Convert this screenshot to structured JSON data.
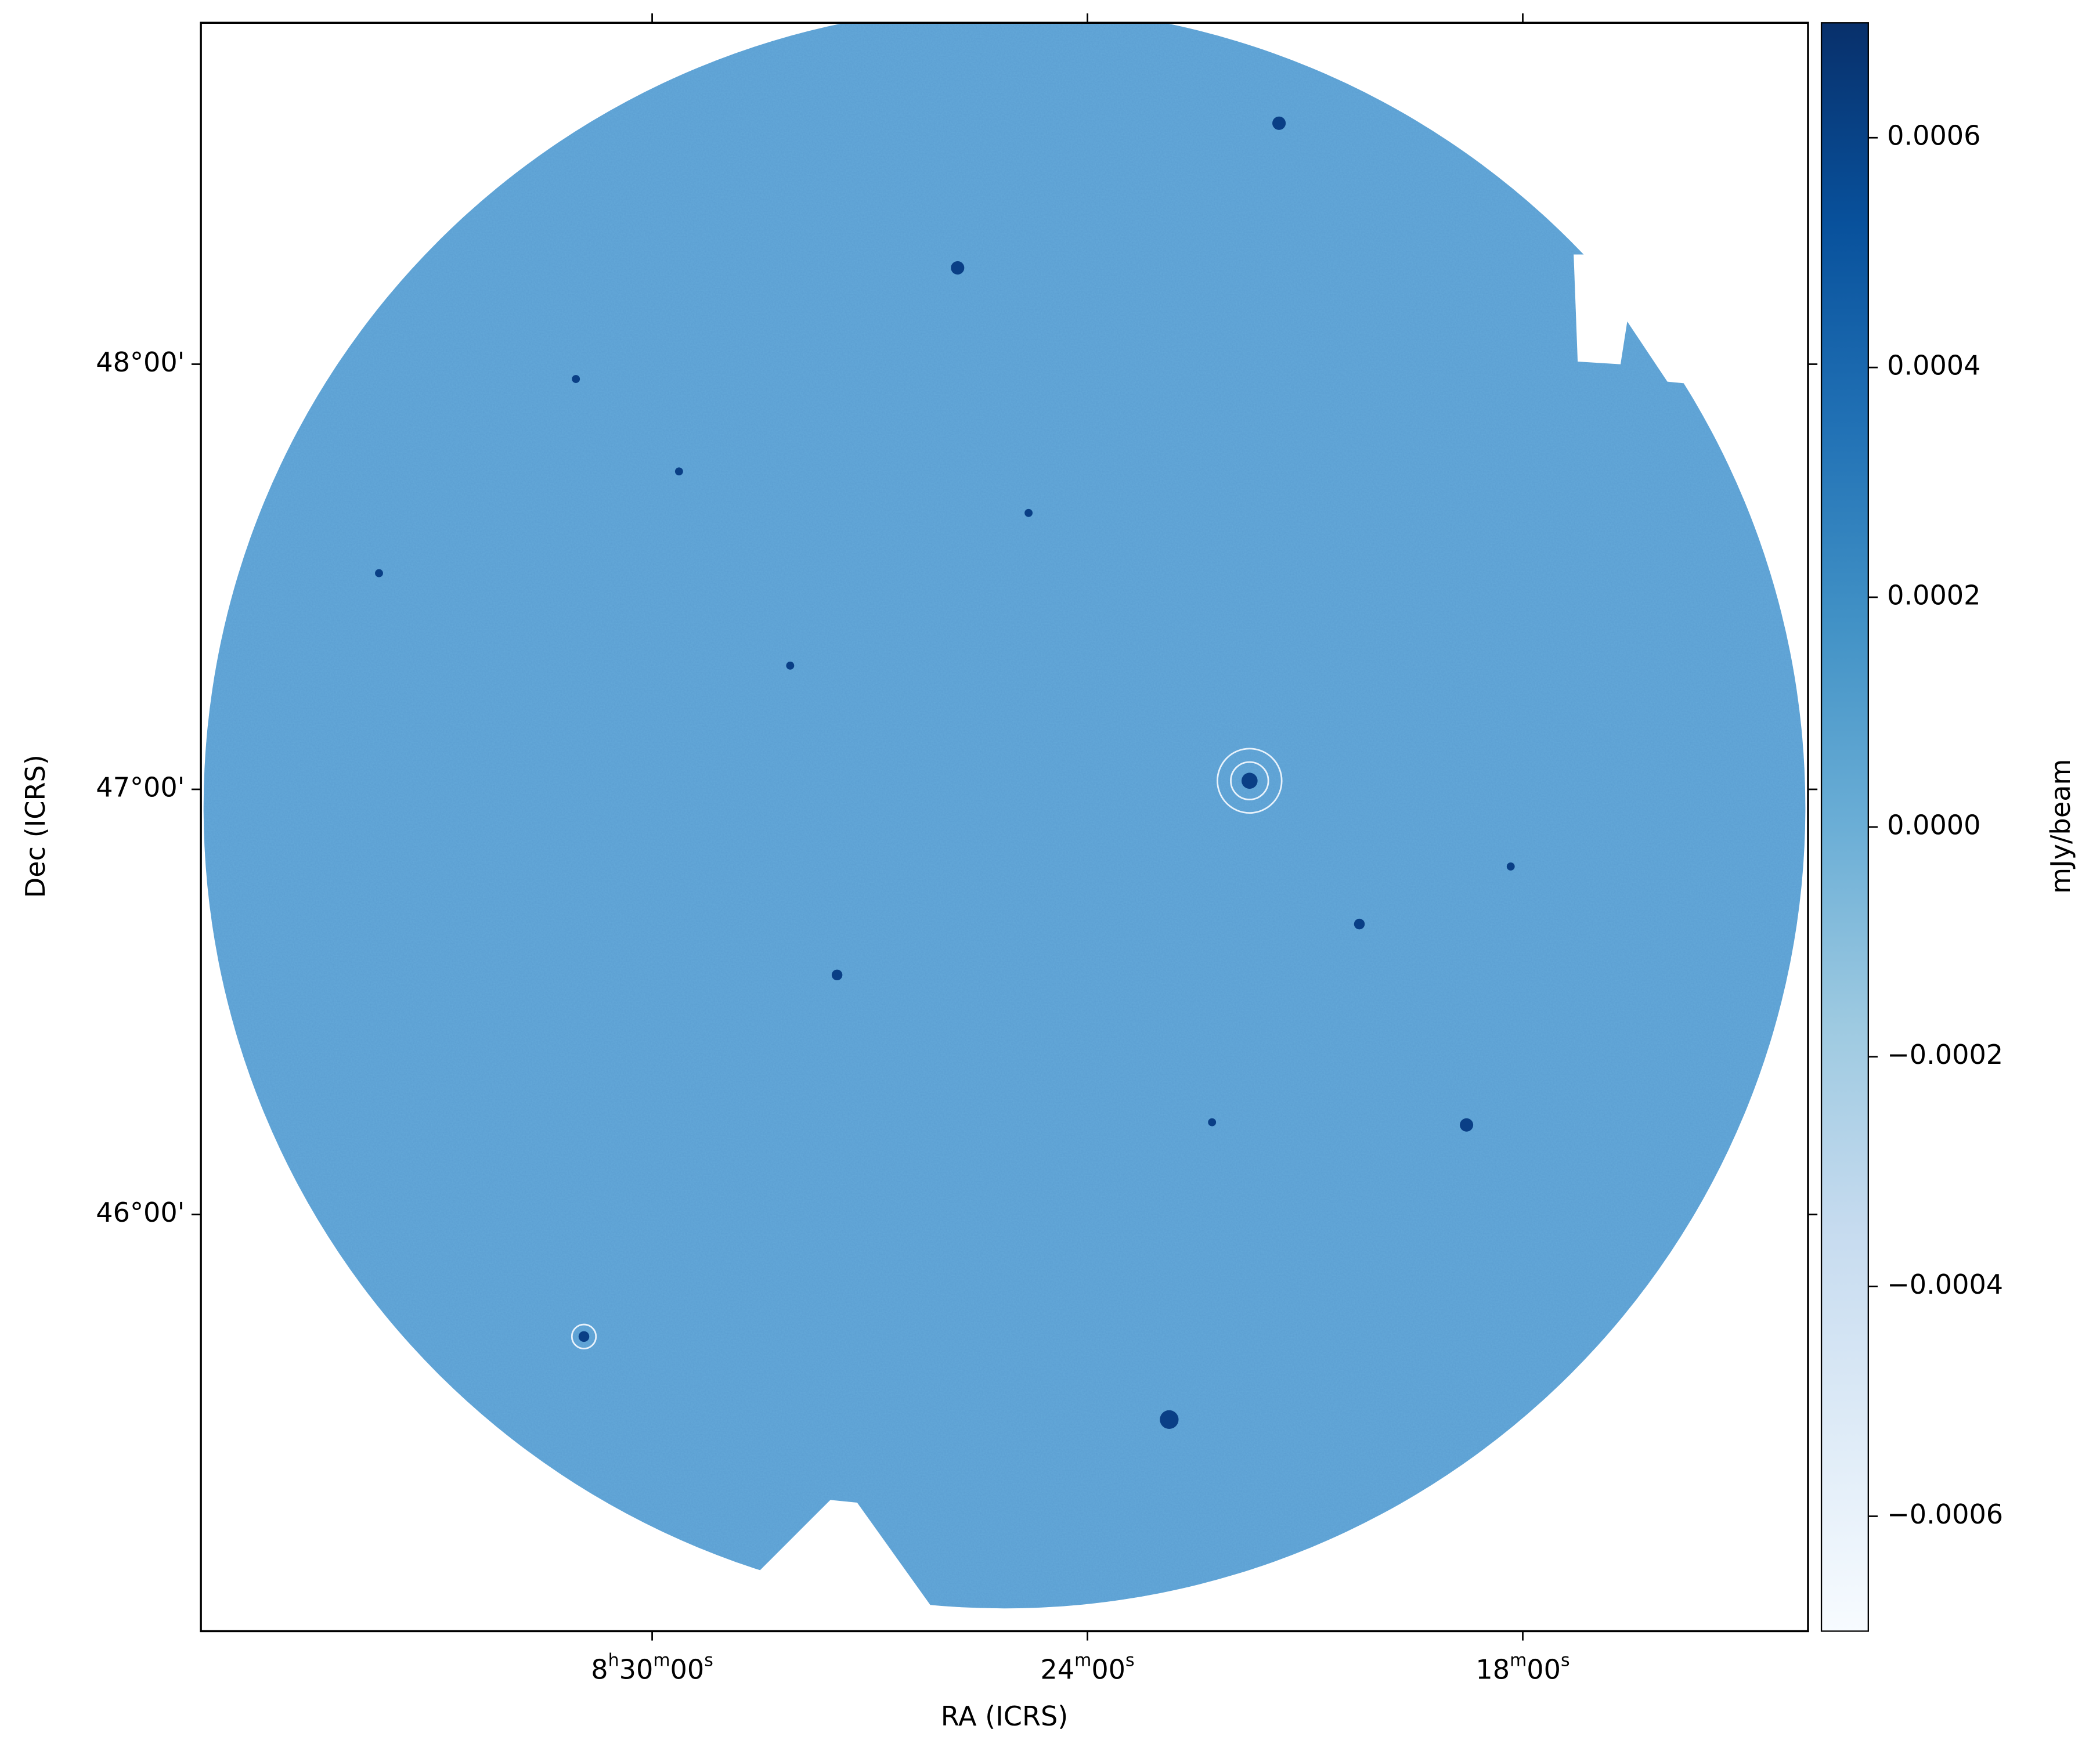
{
  "chart_data": {
    "type": "image",
    "xlabel": "RA (ICRS)",
    "ylabel": "Dec (ICRS)",
    "xlim": [
      129.055,
      123.517
    ],
    "xticks": [
      {
        "value": 127.5,
        "label": "8h30m00s"
      },
      {
        "value": 126,
        "label": "24m00s"
      },
      {
        "value": 124.5,
        "label": "18m00s"
      }
    ],
    "ylim": [
      45.02,
      48.803
    ],
    "yticks": [
      {
        "value": 46,
        "label": "46°00'"
      },
      {
        "value": 47,
        "label": "47°00'"
      },
      {
        "value": 48,
        "label": "48°00'"
      }
    ],
    "colorbar": {
      "label": "mJy/beam",
      "clim": [
        -0.0007,
        0.0007
      ],
      "ticks": [
        {
          "value": -0.0006,
          "label": "−0.0006"
        },
        {
          "value": -0.0004,
          "label": "−0.0004"
        },
        {
          "value": -0.0002,
          "label": "−0.0002"
        },
        {
          "value": 0,
          "label": "0.0000"
        },
        0.0002,
        0.0004,
        0.0006
      ],
      "colormap": [
        "#f7fbff",
        "#deebf7",
        "#c6dbef",
        "#9ecae1",
        "#6baed6",
        "#4292c6",
        "#2171b5",
        "#08519c",
        "#08306b"
      ]
    }
  }
}
